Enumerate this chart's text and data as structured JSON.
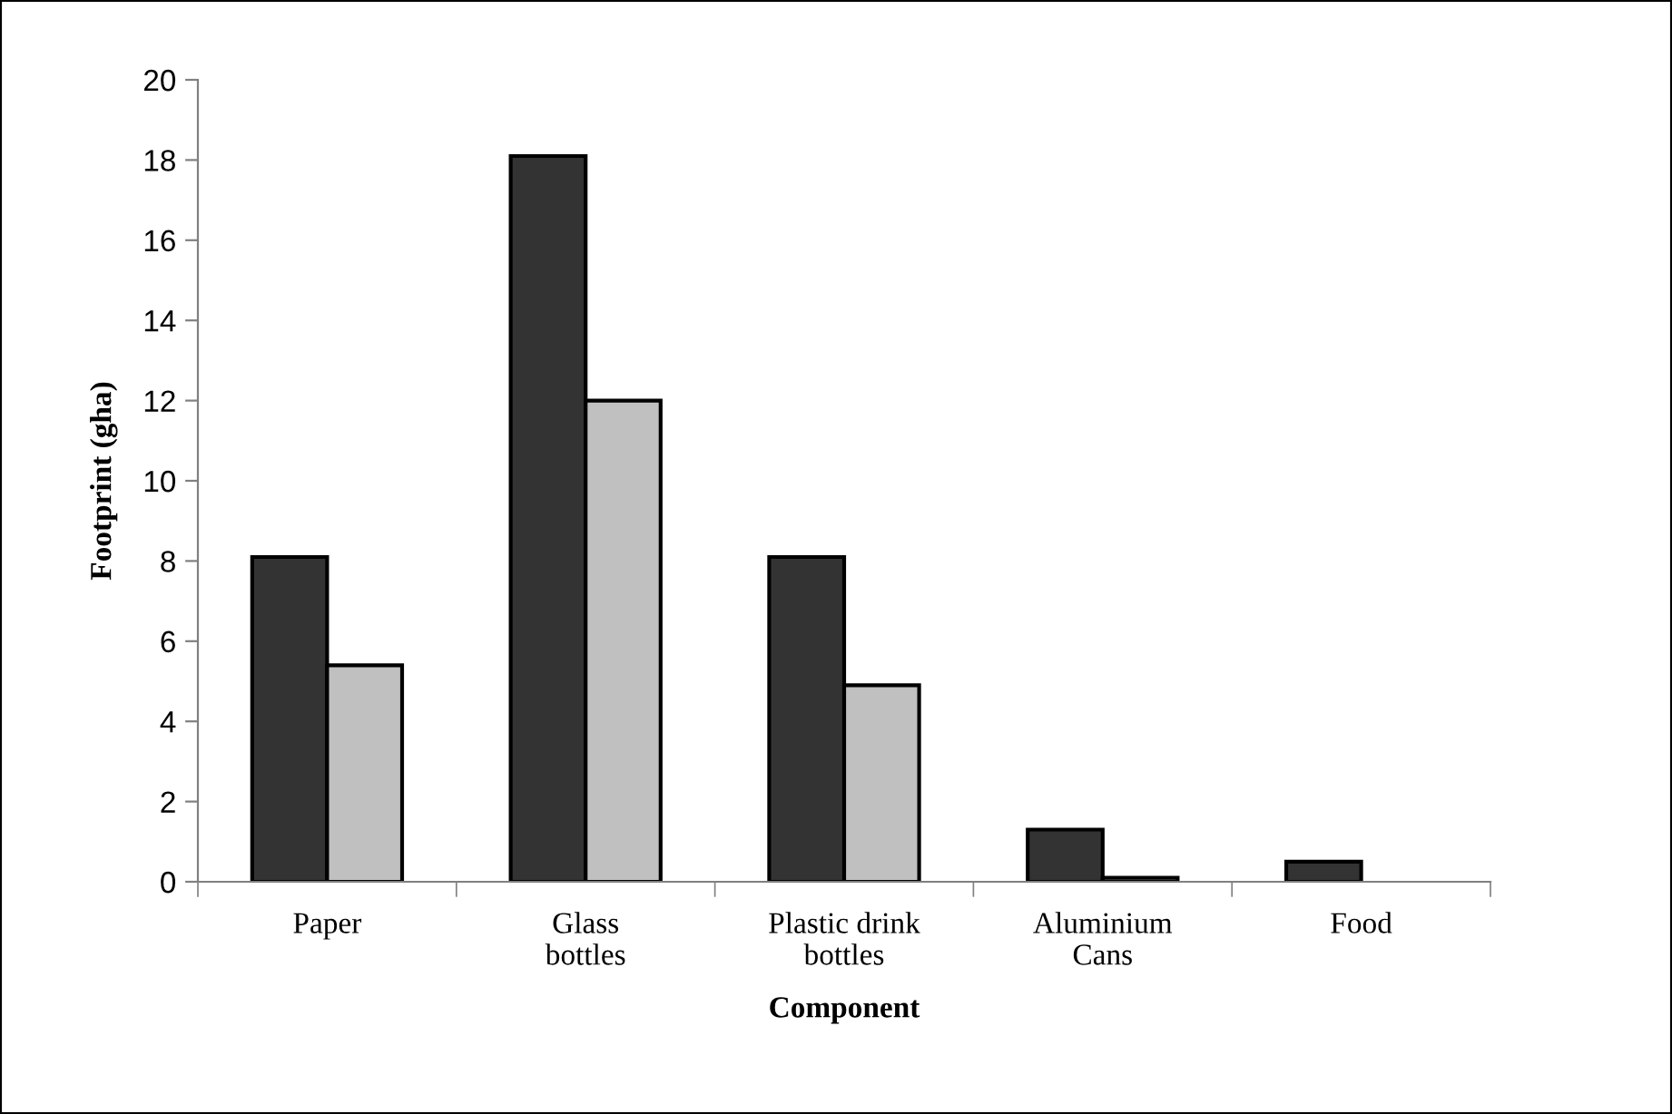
{
  "chart_data": {
    "type": "bar",
    "xlabel": "Component",
    "ylabel": "Footprint (gha)",
    "categories": [
      "Paper",
      "Glass bottles",
      "Plastic drink bottles",
      "Aluminium Cans",
      "Food"
    ],
    "series": [
      {
        "color": "#333333",
        "values": [
          8.1,
          18.1,
          8.1,
          1.3,
          0.5
        ]
      },
      {
        "color": "#c0c0c0",
        "values": [
          5.4,
          12.0,
          4.9,
          0.1,
          null
        ]
      }
    ],
    "ylim": [
      0,
      20
    ],
    "yticks": [
      0,
      2,
      4,
      6,
      8,
      10,
      12,
      14,
      16,
      18,
      20
    ],
    "grid": false,
    "legend": false
  }
}
